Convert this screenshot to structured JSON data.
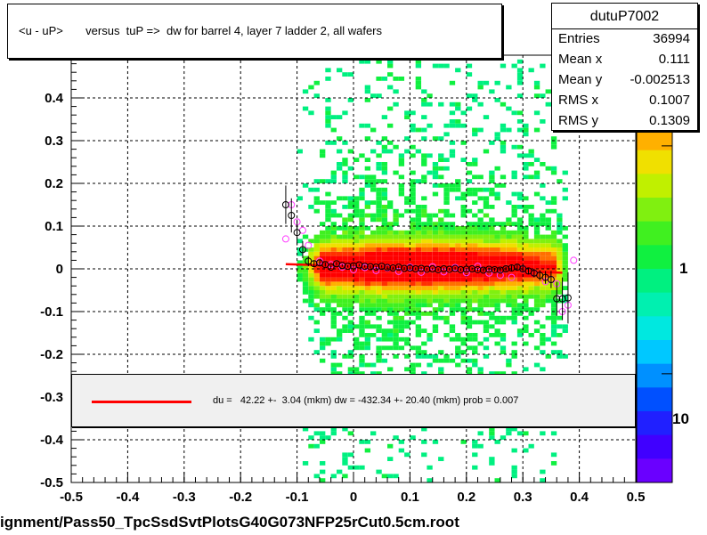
{
  "title": "<u - uP>       versus  tuP =>  dw for barrel 4, layer 7 ladder 2, all wafers",
  "stats": {
    "name": "dutuP7002",
    "rows": [
      {
        "key": "Entries",
        "value": "36994"
      },
      {
        "key": "Mean x",
        "value": "0.111"
      },
      {
        "key": "Mean y",
        "value": "-0.002513"
      },
      {
        "key": "RMS x",
        "value": "0.1007"
      },
      {
        "key": "RMS y",
        "value": "0.1309"
      }
    ]
  },
  "legend": {
    "text": "du =   42.22 +-  3.04 (mkm) dw = -432.34 +- 20.40 (mkm) prob = 0.007",
    "line_color": "#ff0000"
  },
  "footer": "ignment/Pass50_TpcSsdSvtPlotsG40G073NFP25rCut0.5cm.root",
  "colors": {
    "palette": [
      "#6a00ff",
      "#4000ff",
      "#2020ff",
      "#0050ff",
      "#0090ff",
      "#00c8ff",
      "#00e8e0",
      "#00f0b0",
      "#00f080",
      "#10f040",
      "#40f020",
      "#80f010",
      "#c0f000",
      "#f0e000",
      "#ffb000",
      "#ff7000",
      "#ff3000",
      "#ff0000"
    ],
    "fit_line": "#ff0000",
    "profile_black": "#000000",
    "profile_magenta": "#ff40ff"
  },
  "chart_data": {
    "type": "heatmap",
    "xlim": [
      -0.5,
      0.5
    ],
    "ylim": [
      -0.5,
      0.5
    ],
    "x_ticks": [
      -0.5,
      -0.4,
      -0.3,
      -0.2,
      -0.1,
      0,
      0.1,
      0.2,
      0.3,
      0.4,
      0.5
    ],
    "y_ticks": [
      -0.5,
      -0.4,
      -0.3,
      -0.2,
      -0.1,
      0,
      0.1,
      0.2,
      0.3,
      0.4
    ],
    "x_tick_labels": [
      "-0.5",
      "-0.4",
      "-0.3",
      "-0.2",
      "-0.1",
      "0",
      "0.1",
      "0.2",
      "0.3",
      "0.4",
      "0.5"
    ],
    "y_tick_labels": [
      "-0.5",
      "-0.4",
      "-0.3",
      "-0.2",
      "-0.1",
      "0",
      "0.1",
      "0.2",
      "0.3",
      "0.4"
    ],
    "grid": true,
    "log_z": true,
    "z_tick_labels": [
      "1",
      "10"
    ],
    "z_ticks": [
      1,
      10
    ],
    "zlim": [
      0.4,
      30
    ],
    "data_x_range": [
      -0.1,
      0.38
    ],
    "fit": {
      "x": [
        -0.12,
        0.37
      ],
      "y": [
        0.011,
        -0.009
      ]
    },
    "profile_black": {
      "x": [
        -0.12,
        -0.11,
        -0.1,
        -0.09,
        -0.08,
        -0.07,
        -0.06,
        -0.05,
        -0.04,
        -0.03,
        -0.02,
        -0.01,
        0,
        0.01,
        0.02,
        0.03,
        0.04,
        0.05,
        0.06,
        0.07,
        0.08,
        0.09,
        0.1,
        0.11,
        0.12,
        0.13,
        0.14,
        0.15,
        0.16,
        0.17,
        0.18,
        0.19,
        0.2,
        0.21,
        0.22,
        0.23,
        0.24,
        0.25,
        0.26,
        0.27,
        0.28,
        0.29,
        0.3,
        0.31,
        0.32,
        0.33,
        0.34,
        0.35,
        0.36,
        0.37,
        0.38
      ],
      "y": [
        0.15,
        0.125,
        0.085,
        0.045,
        0.018,
        0.012,
        0.014,
        0.01,
        0.004,
        0.012,
        0.008,
        0.006,
        0.007,
        0.009,
        0.006,
        0.005,
        0.004,
        0.006,
        0.003,
        0.002,
        0.004,
        0.001,
        0.002,
        0.0,
        0.001,
        -0.001,
        0.0,
        -0.002,
        0.0,
        -0.001,
        0.001,
        -0.002,
        -0.001,
        0.0,
        -0.002,
        -0.003,
        -0.001,
        -0.002,
        -0.003,
        0.0,
        0.002,
        0.004,
        0.0,
        -0.005,
        -0.01,
        -0.015,
        -0.02,
        -0.025,
        -0.07,
        -0.07,
        -0.068
      ],
      "err": [
        0.045,
        0.04,
        0.03,
        0.02,
        0.012,
        0.008,
        0.006,
        0.005,
        0.004,
        0.004,
        0.003,
        0.003,
        0.003,
        0.003,
        0.003,
        0.003,
        0.003,
        0.003,
        0.003,
        0.003,
        0.003,
        0.003,
        0.003,
        0.003,
        0.003,
        0.003,
        0.003,
        0.003,
        0.003,
        0.003,
        0.003,
        0.003,
        0.003,
        0.003,
        0.004,
        0.004,
        0.004,
        0.004,
        0.005,
        0.005,
        0.006,
        0.006,
        0.007,
        0.008,
        0.01,
        0.012,
        0.015,
        0.02,
        0.04,
        0.05,
        0.06
      ]
    },
    "profile_magenta": {
      "x": [
        -0.12,
        -0.11,
        -0.1,
        -0.09,
        -0.08,
        -0.06,
        -0.04,
        -0.02,
        0,
        0.02,
        0.04,
        0.06,
        0.08,
        0.1,
        0.12,
        0.14,
        0.16,
        0.18,
        0.2,
        0.22,
        0.24,
        0.26,
        0.28,
        0.3,
        0.32,
        0.34,
        0.35,
        0.36,
        0.37,
        0.38,
        0.39
      ],
      "y": [
        0.07,
        0.15,
        0.11,
        0.09,
        0.055,
        0.018,
        0.01,
        0.004,
        -0.002,
        0.003,
        -0.004,
        0.002,
        -0.006,
        0.004,
        -0.008,
        0.005,
        -0.007,
        0.003,
        -0.009,
        0.006,
        -0.01,
        -0.015,
        -0.02,
        0.0,
        -0.01,
        -0.03,
        -0.025,
        -0.035,
        -0.1,
        -0.085,
        0.02
      ]
    }
  }
}
